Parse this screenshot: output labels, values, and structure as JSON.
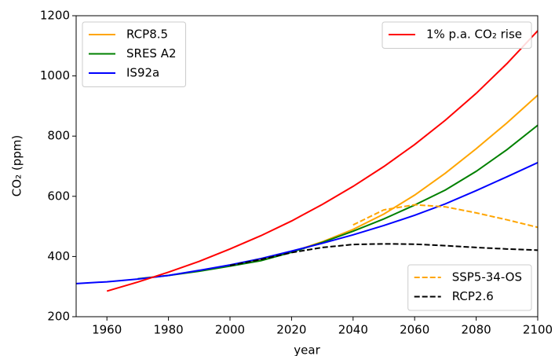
{
  "chart_data": {
    "type": "line",
    "xlabel": "year",
    "ylabel": "CO₂ (ppm)",
    "xlim": [
      1950,
      2100
    ],
    "xticks": [
      1960,
      1980,
      2000,
      2020,
      2040,
      2060,
      2080,
      2100
    ],
    "ylim": [
      200,
      1200
    ],
    "yticks": [
      200,
      400,
      600,
      800,
      1000,
      1200
    ],
    "series": [
      {
        "name": "RCP8.5",
        "color": "#ffa500",
        "dash": false,
        "legend": "upper left",
        "x": [
          2000,
          2010,
          2020,
          2030,
          2040,
          2050,
          2060,
          2070,
          2080,
          2090,
          2100
        ],
        "values": [
          370,
          390,
          415,
          449,
          490,
          541,
          604,
          677,
          758,
          844,
          936
        ]
      },
      {
        "name": "SRES A2",
        "color": "#008000",
        "dash": false,
        "legend": "upper left",
        "x": [
          1970,
          1980,
          1990,
          2000,
          2010,
          2020,
          2030,
          2040,
          2050,
          2060,
          2070,
          2080,
          2090,
          2100
        ],
        "values": [
          326,
          337,
          351,
          368,
          386,
          414,
          447,
          484,
          525,
          571,
          621,
          683,
          755,
          836
        ]
      },
      {
        "name": "IS92a",
        "color": "#0000ff",
        "dash": false,
        "legend": "upper left",
        "x": [
          1950,
          1960,
          1970,
          1980,
          1990,
          2000,
          2010,
          2020,
          2030,
          2040,
          2050,
          2060,
          2070,
          2080,
          2090,
          2100
        ],
        "values": [
          310,
          316,
          325,
          337,
          354,
          372,
          393,
          418,
          444,
          472,
          503,
          537,
          575,
          619,
          665,
          712
        ]
      },
      {
        "name": "1% p.a. CO₂ rise",
        "color": "#ff0000",
        "dash": false,
        "legend": "upper right",
        "x": [
          1960,
          1970,
          1980,
          1990,
          2000,
          2010,
          2020,
          2030,
          2040,
          2050,
          2060,
          2070,
          2080,
          2090,
          2100
        ],
        "values": [
          285,
          315,
          348,
          384,
          425,
          469,
          518,
          573,
          633,
          699,
          772,
          853,
          942,
          1041,
          1150
        ]
      },
      {
        "name": "SSP5-34-OS",
        "color": "#ffa500",
        "dash": true,
        "legend": "lower right",
        "x": [
          2040,
          2050,
          2060,
          2070,
          2080,
          2090,
          2100
        ],
        "values": [
          505,
          555,
          572,
          565,
          545,
          522,
          497
        ]
      },
      {
        "name": "RCP2.6",
        "color": "#000000",
        "dash": true,
        "legend": "lower right",
        "x": [
          2000,
          2010,
          2020,
          2030,
          2040,
          2050,
          2060,
          2070,
          2080,
          2090,
          2100
        ],
        "values": [
          370,
          390,
          413,
          430,
          440,
          442,
          441,
          436,
          430,
          425,
          421
        ]
      }
    ]
  }
}
